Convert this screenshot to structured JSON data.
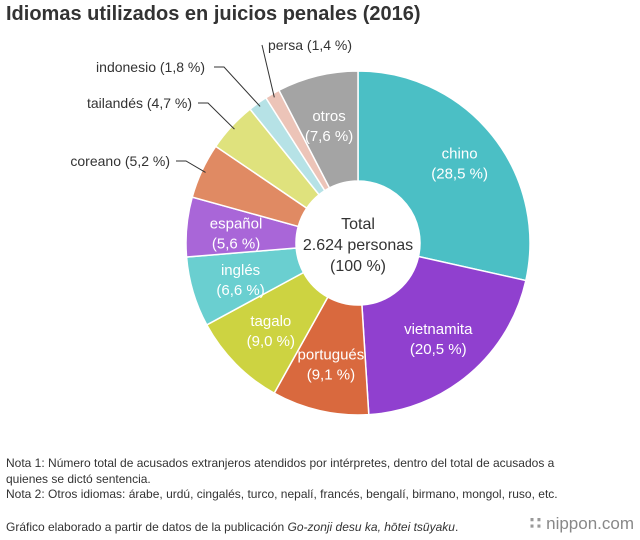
{
  "title": "Idiomas utilizados en juicios penales (2016)",
  "chart_data": {
    "type": "donut",
    "title": "Idiomas utilizados en juicios penales (2016)",
    "center_label": [
      "Total",
      "2.624 personas",
      "(100 %)"
    ],
    "series": [
      {
        "name": "chino",
        "percent_label": "(28,5 %)",
        "value": 28.5,
        "color": "#4bbfc5",
        "label_position": "inside"
      },
      {
        "name": "vietnamita",
        "percent_label": "(20,5 %)",
        "value": 20.5,
        "color": "#9040cf",
        "label_position": "inside"
      },
      {
        "name": "portugués",
        "percent_label": "(9,1 %)",
        "value": 9.1,
        "color": "#d9693e",
        "label_position": "inside"
      },
      {
        "name": "tagalo",
        "percent_label": "(9,0 %)",
        "value": 9.0,
        "color": "#cdd341",
        "label_position": "inside"
      },
      {
        "name": "inglés",
        "percent_label": "(6,6 %)",
        "value": 6.6,
        "color": "#6acfd0",
        "label_position": "inside"
      },
      {
        "name": "español",
        "percent_label": "(5,6 %)",
        "value": 5.6,
        "color": "#a966d8",
        "label_position": "inside"
      },
      {
        "name": "coreano",
        "percent_label": "(5,2 %)",
        "value": 5.2,
        "color": "#e08a63",
        "label_position": "outside"
      },
      {
        "name": "tailandés",
        "percent_label": "(4,7 %)",
        "value": 4.7,
        "color": "#dfe27d",
        "label_position": "outside"
      },
      {
        "name": "indonesio",
        "percent_label": "(1,8 %)",
        "value": 1.8,
        "color": "#b6e2e6",
        "label_position": "outside"
      },
      {
        "name": "persa",
        "percent_label": "(1,4 %)",
        "value": 1.4,
        "color": "#ecc4b8",
        "label_position": "outside"
      },
      {
        "name": "otros",
        "percent_label": "(7,6 %)",
        "value": 7.6,
        "color": "#a4a4a4",
        "label_position": "inside"
      }
    ]
  },
  "notes": [
    "Nota 1: Número total de acusados extranjeros atendidos por intérpretes, dentro del total de acusados a quienes se dictó sentencia.",
    "Nota 2: Otros idiomas: árabe, urdú, cingalés, turco, nepalí, francés, bengalí, birmano, mongol, ruso, etc."
  ],
  "source": {
    "prefix": "Gráfico elaborado a partir de datos de la publicación ",
    "publication": "Go-zonji desu ka, hōtei tsūyaku",
    "suffix": "."
  },
  "brand": {
    "dots": "∷",
    "name": "nippon.com"
  }
}
